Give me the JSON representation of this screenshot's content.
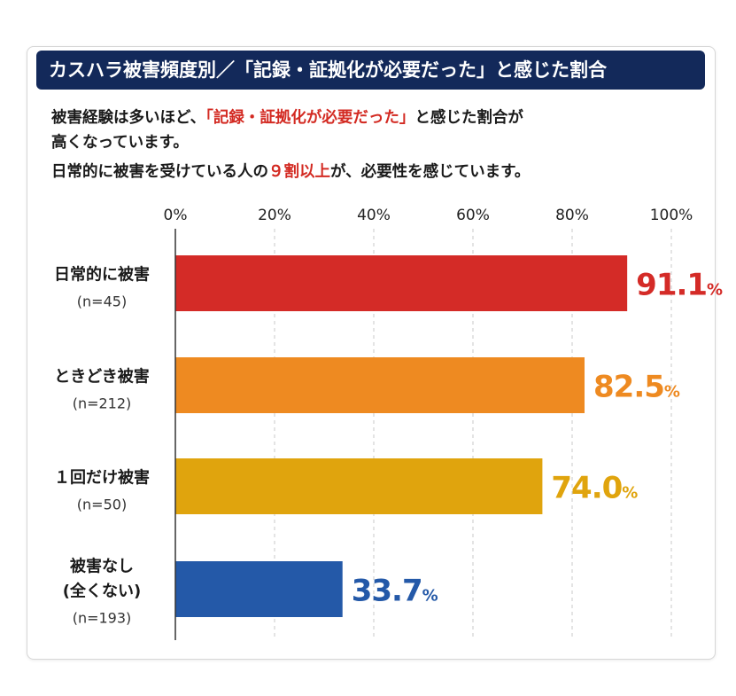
{
  "header": {
    "title": "カスハラ被害頻度別／「記録・証拠化が必要だった」と感じた割合"
  },
  "description": {
    "line1_pre": "被害経験は多いほど、",
    "line1_highlight": "「記録・証拠化が必要だった」",
    "line1_post": "と感じた割合が",
    "line2": "高くなっています。",
    "line3_pre": "日常的に被害を受けている人の",
    "line3_highlight": "９割以上",
    "line3_post": "が、必要性を感じています。"
  },
  "colors": {
    "header_bg": "#13295a",
    "highlight": "#d32a22"
  },
  "chart_data": {
    "type": "bar",
    "orientation": "horizontal",
    "xlim": [
      0,
      100
    ],
    "ticks": [
      "0%",
      "20%",
      "40%",
      "60%",
      "80%",
      "100%"
    ],
    "tick_values": [
      0,
      20,
      40,
      60,
      80,
      100
    ],
    "grid": true,
    "categories": [
      {
        "label": "日常的に被害",
        "n": "(n=45)",
        "value": 91.1,
        "value_label": "91.1",
        "unit": "%",
        "color": "#d42b27"
      },
      {
        "label": "ときどき被害",
        "n": "(n=212)",
        "value": 82.5,
        "value_label": "82.5",
        "unit": "%",
        "color": "#ee8a21"
      },
      {
        "label": "１回だけ被害",
        "n": "(n=50)",
        "value": 74.0,
        "value_label": "74.0",
        "unit": "%",
        "color": "#e0a40d"
      },
      {
        "label": "被害なし\n(全くない)",
        "n": "(n=193)",
        "value": 33.7,
        "value_label": "33.7",
        "unit": "%",
        "color": "#2459a8"
      }
    ]
  }
}
